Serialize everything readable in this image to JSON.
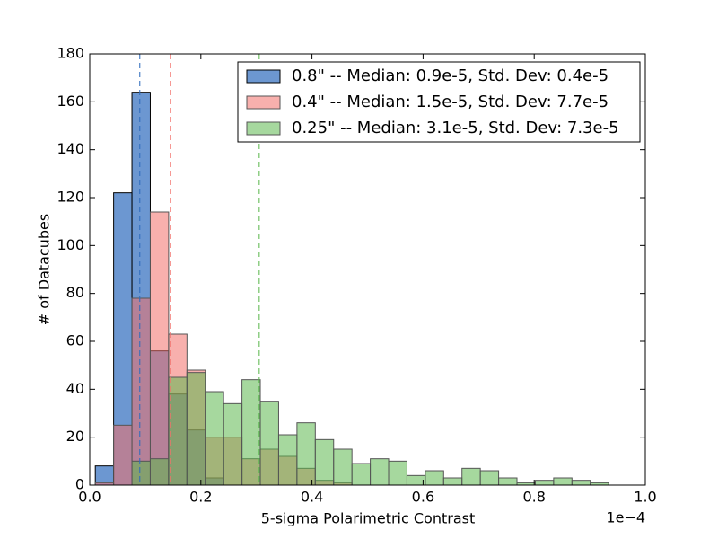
{
  "chart_data": {
    "type": "histogram",
    "xlabel": "5-sigma Polarimetric Contrast",
    "ylabel": "# of Datacubes",
    "x_offset_label": "1e−4",
    "xlim": [
      0,
      1
    ],
    "ylim": [
      0,
      180
    ],
    "xticks": [
      {
        "value": 0,
        "label": "0.0"
      },
      0.2,
      0.4,
      0.6,
      0.8,
      {
        "value": 1,
        "label": "1.0"
      }
    ],
    "yticks": [
      0,
      20,
      40,
      60,
      80,
      100,
      120,
      140,
      160,
      180
    ],
    "legend": "upper right",
    "bins": [
      0.01,
      0.043,
      0.076,
      0.109,
      0.142,
      0.175,
      0.208,
      0.241,
      0.274,
      0.307,
      0.34,
      0.373,
      0.406,
      0.439,
      0.472,
      0.505,
      0.538,
      0.571,
      0.604,
      0.637,
      0.67,
      0.703,
      0.736,
      0.769,
      0.802,
      0.835,
      0.868,
      0.901,
      0.934
    ],
    "series": [
      {
        "name": "0.8\" -- Median: 0.9e-5, Std. Dev: 0.4e-5",
        "color": "#2e6bbd",
        "alpha": 0.7,
        "edgecolor": "#000000",
        "median": 0.09,
        "values": [
          8,
          122,
          164,
          56,
          38,
          23,
          3,
          0,
          0,
          0,
          0,
          0,
          0,
          0,
          0,
          0,
          0,
          0,
          0,
          0,
          0,
          0,
          0,
          0,
          0,
          0,
          0,
          0
        ]
      },
      {
        "name": "0.4\" -- Median: 1.5e-5, Std. Dev: 7.7e-5",
        "color": "#f3706a",
        "alpha": 0.55,
        "edgecolor": "#555555",
        "median": 0.145,
        "values": [
          1,
          25,
          78,
          114,
          63,
          48,
          20,
          20,
          11,
          15,
          12,
          7,
          2,
          1,
          0,
          0,
          0,
          0,
          0,
          0,
          0,
          0,
          0,
          0,
          0,
          0,
          0,
          0
        ]
      },
      {
        "name": "0.25\" -- Median: 3.1e-5, Std. Dev: 7.3e-5",
        "color": "#5cb84f",
        "alpha": 0.55,
        "edgecolor": "#555555",
        "median": 0.305,
        "values": [
          0,
          0,
          10,
          11,
          45,
          47,
          39,
          34,
          44,
          35,
          21,
          26,
          19,
          15,
          9,
          11,
          10,
          4,
          6,
          3,
          7,
          6,
          3,
          1,
          2,
          3,
          2,
          1
        ]
      }
    ]
  }
}
